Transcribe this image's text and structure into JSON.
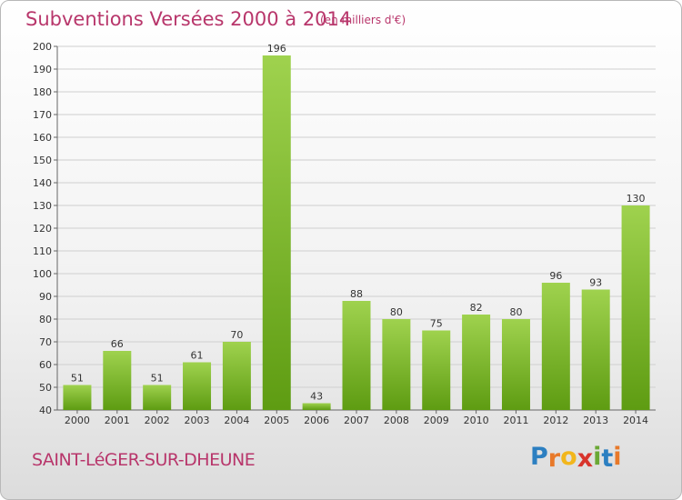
{
  "header": {
    "title": "Subventions Versées 2000 à 2014",
    "subtitle": "(en milliers d'€)"
  },
  "footer": {
    "commune": "SAINT-LéGER-SUR-DHEUNE",
    "logo": {
      "letters": [
        "P",
        "r",
        "o",
        "x",
        "i",
        "t",
        "i"
      ],
      "colors": [
        "#2c7fc1",
        "#e8792a",
        "#f2b61c",
        "#d8342c",
        "#6aa835",
        "#2c7fc1",
        "#e8792a"
      ]
    }
  },
  "colors": {
    "bar_top": "#9fd24e",
    "bar_bottom": "#5e9c12",
    "title": "#b8366b",
    "grid": "#cfcfcf"
  },
  "chart_data": {
    "type": "bar",
    "title": "Subventions Versées 2000 à 2014",
    "subtitle": "(en milliers d'€)",
    "categories": [
      "2000",
      "2001",
      "2002",
      "2003",
      "2004",
      "2005",
      "2006",
      "2007",
      "2008",
      "2009",
      "2010",
      "2011",
      "2012",
      "2013",
      "2014"
    ],
    "values": [
      51,
      66,
      51,
      61,
      70,
      196,
      43,
      88,
      80,
      75,
      82,
      80,
      96,
      93,
      130
    ],
    "ylim": [
      40,
      200
    ],
    "yticks": [
      40,
      50,
      60,
      70,
      80,
      90,
      100,
      110,
      120,
      130,
      140,
      150,
      160,
      170,
      180,
      190,
      200
    ],
    "grid": true,
    "data_labels": true
  }
}
